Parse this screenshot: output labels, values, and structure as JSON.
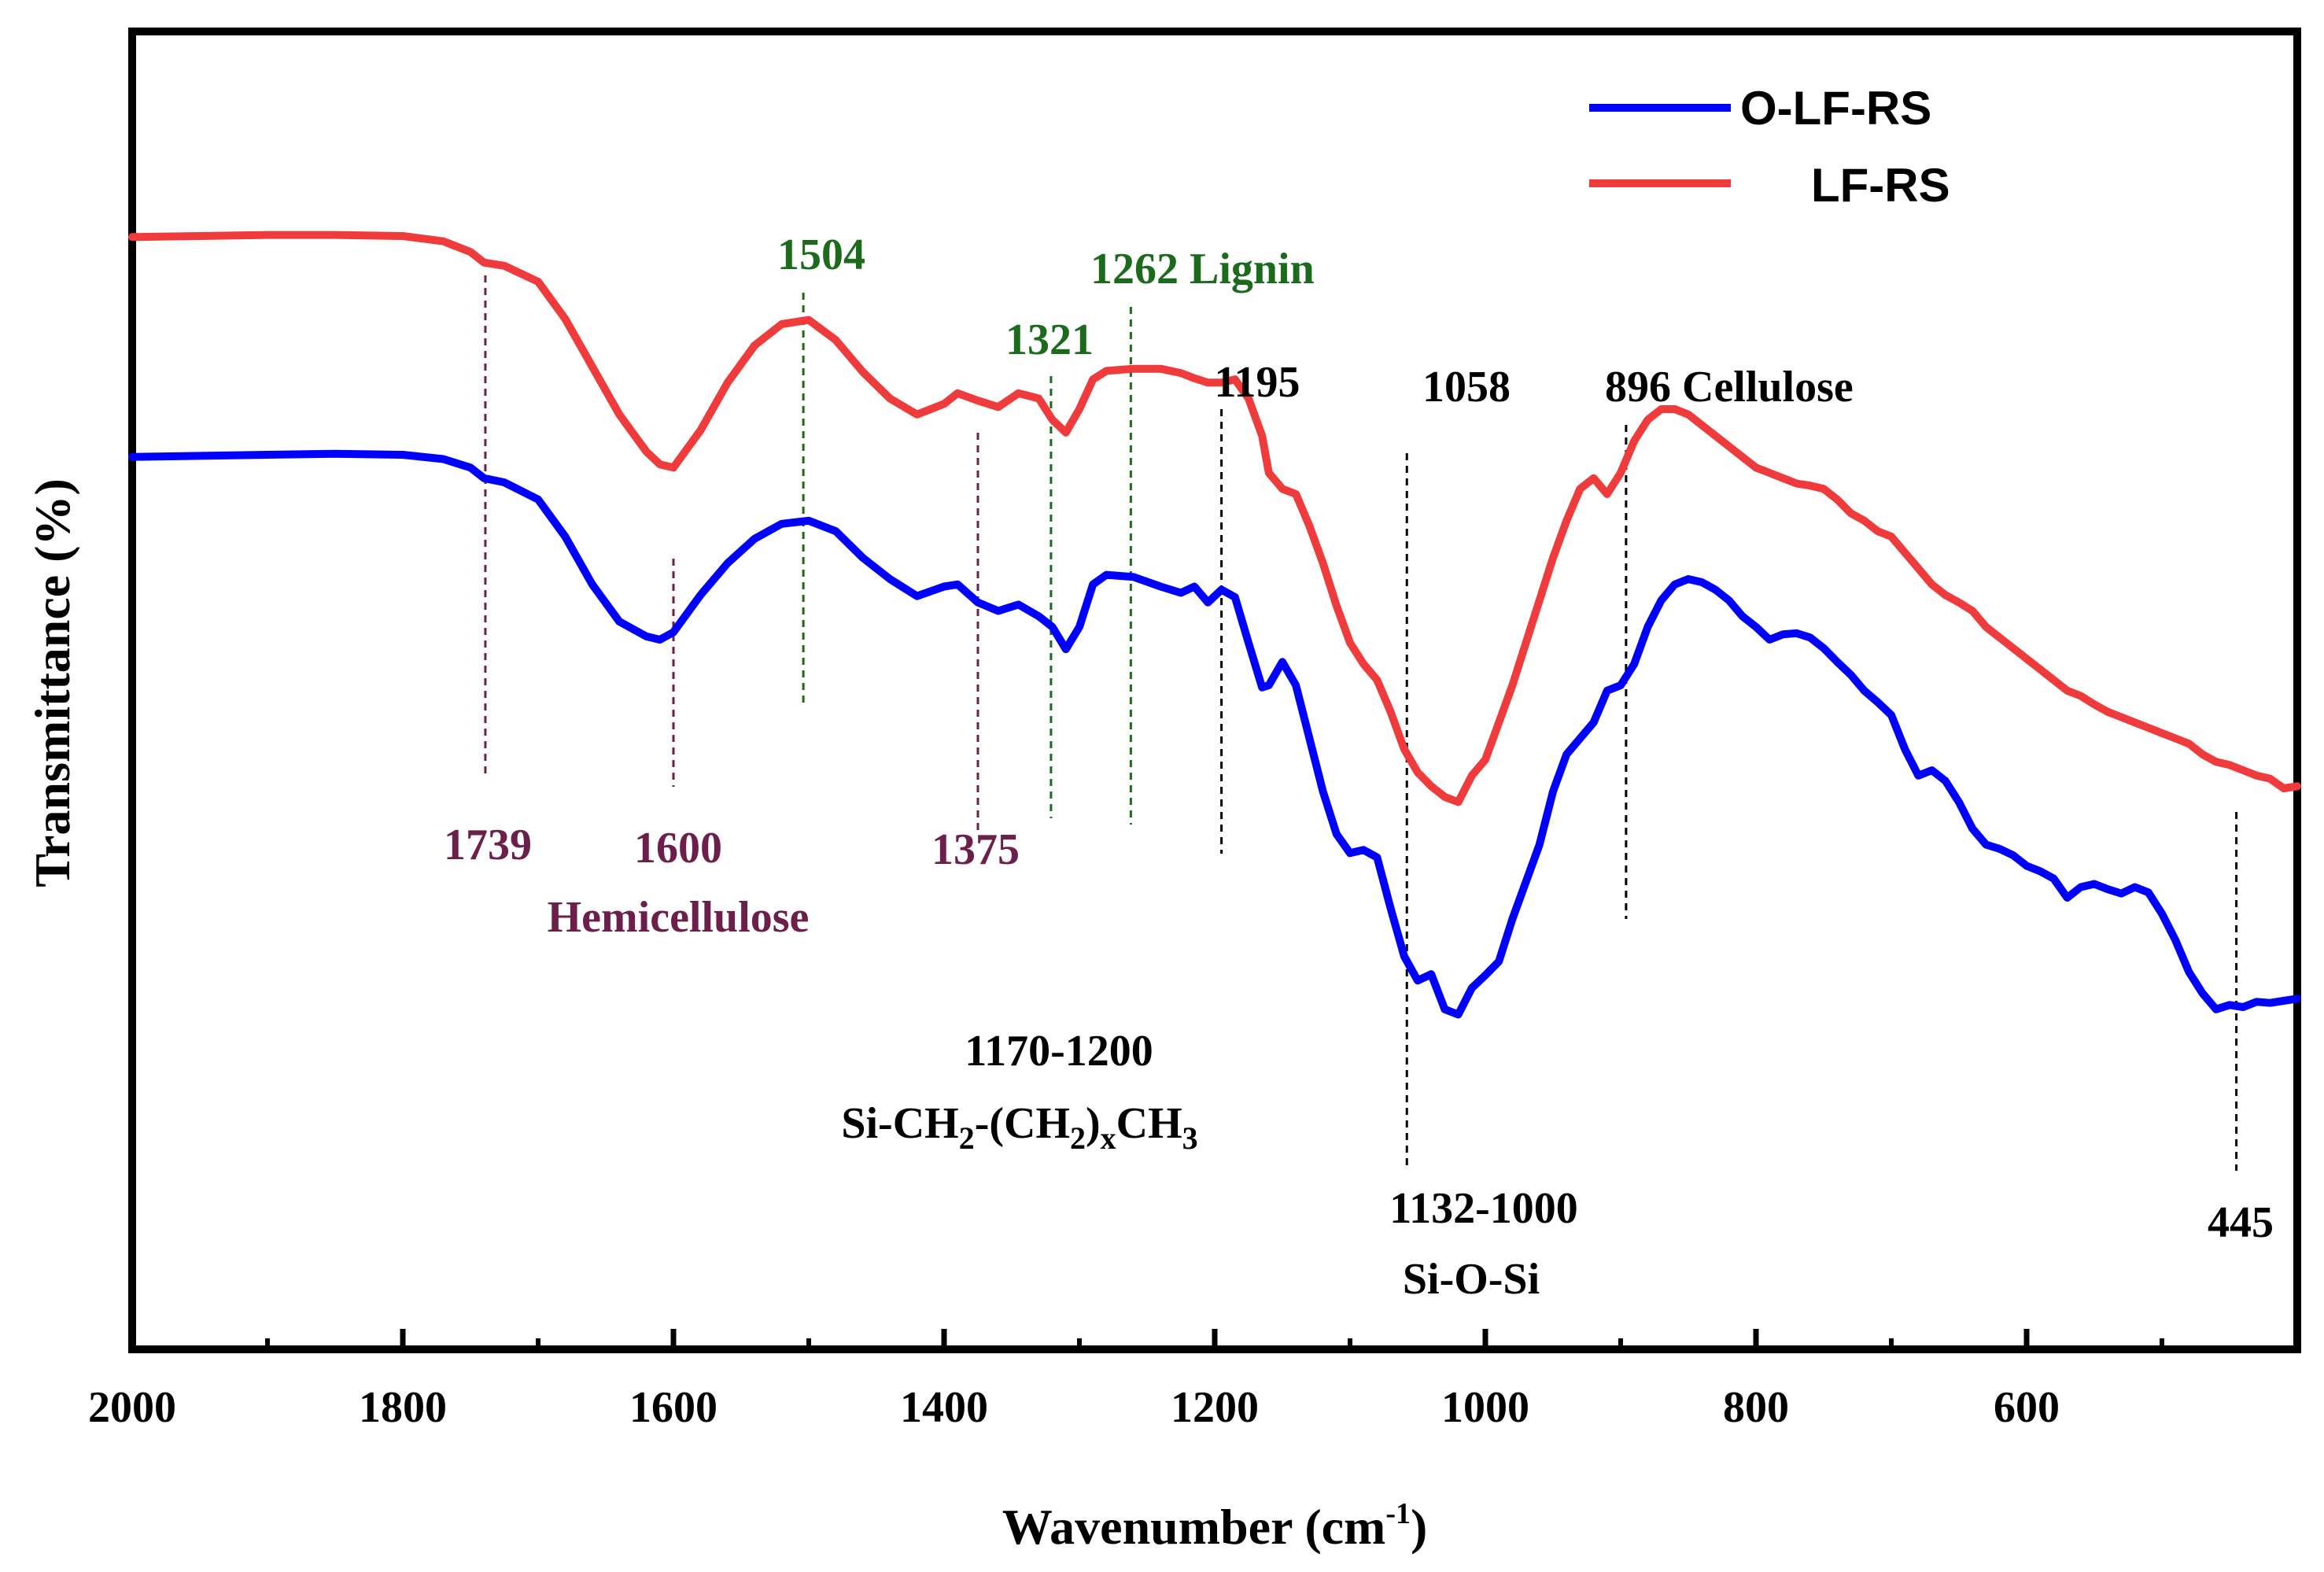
{
  "colors": {
    "o_lf_rs": "#0000ff",
    "lf_rs": "#ef3b3b",
    "hemicellulose": "#6b1f4a",
    "lignin": "#1c6b1c",
    "cellulose": "#000000"
  },
  "chart_data": {
    "type": "line",
    "title": "",
    "xlabel_main": "Wavenumber (cm",
    "xlabel_sup": "-1",
    "xlabel_close": ")",
    "ylabel": "Transmittance (%)",
    "xlim": [
      2000,
      400
    ],
    "x_reversed": true,
    "ylim": [
      0,
      100
    ],
    "y_ticks_shown": false,
    "x_ticks": [
      2000,
      1800,
      1600,
      1400,
      1200,
      1000,
      800,
      600
    ],
    "x_tick_labels": [
      "2000",
      "1800",
      "1600",
      "1400",
      "1200",
      "1000",
      "800",
      "600"
    ],
    "legend_position": "top-right",
    "series": [
      {
        "name": "O-LF-RS",
        "color": "#0000ff",
        "x": [
          2000,
          1950,
          1900,
          1850,
          1800,
          1770,
          1750,
          1740,
          1725,
          1700,
          1680,
          1660,
          1640,
          1620,
          1610,
          1600,
          1580,
          1560,
          1540,
          1520,
          1500,
          1480,
          1460,
          1440,
          1420,
          1400,
          1390,
          1375,
          1360,
          1345,
          1330,
          1320,
          1310,
          1300,
          1290,
          1280,
          1260,
          1240,
          1225,
          1215,
          1205,
          1195,
          1185,
          1175,
          1165,
          1160,
          1150,
          1140,
          1130,
          1120,
          1110,
          1100,
          1090,
          1080,
          1070,
          1060,
          1050,
          1040,
          1030,
          1020,
          1010,
          1000,
          990,
          980,
          970,
          960,
          950,
          940,
          930,
          920,
          910,
          900,
          890,
          880,
          870,
          860,
          850,
          840,
          830,
          820,
          810,
          800,
          790,
          780,
          770,
          760,
          750,
          740,
          730,
          720,
          710,
          700,
          690,
          680,
          670,
          660,
          650,
          640,
          630,
          620,
          610,
          600,
          590,
          580,
          570,
          560,
          550,
          540,
          530,
          520,
          510,
          500,
          490,
          480,
          470,
          460,
          450,
          440,
          430,
          420,
          410,
          400
        ],
        "y": [
          75.5,
          75.6,
          75.7,
          75.8,
          75.7,
          75.3,
          74.5,
          73.5,
          73.1,
          71.5,
          68.0,
          63.5,
          60.0,
          58.6,
          58.3,
          59.0,
          62.5,
          65.5,
          67.8,
          69.2,
          69.5,
          68.5,
          66.0,
          64.0,
          62.4,
          63.3,
          63.5,
          61.8,
          61.0,
          61.6,
          60.5,
          59.5,
          57.4,
          59.5,
          63.5,
          64.4,
          64.2,
          63.3,
          62.7,
          63.3,
          61.8,
          63.0,
          62.3,
          58.0,
          53.8,
          54.0,
          56.2,
          54.0,
          49.0,
          44.0,
          40.0,
          38.2,
          38.5,
          37.8,
          33.0,
          28.5,
          26.2,
          26.8,
          23.5,
          23.0,
          25.5,
          26.7,
          28.0,
          32.0,
          35.5,
          39.0,
          44.0,
          47.5,
          49.0,
          50.5,
          53.5,
          54.0,
          56.0,
          59.5,
          62.0,
          63.5,
          64.0,
          63.7,
          63.0,
          62.0,
          60.5,
          59.5,
          58.3,
          58.8,
          58.9,
          58.5,
          57.5,
          56.2,
          55.0,
          53.5,
          52.4,
          51.2,
          48.0,
          45.5,
          46.0,
          45.0,
          43.0,
          40.5,
          39.0,
          38.6,
          38.0,
          37.0,
          36.5,
          35.8,
          34.0,
          35.0,
          35.3,
          34.8,
          34.4,
          35.0,
          34.5,
          32.5,
          30.0,
          27.0,
          25.0,
          23.5,
          23.9,
          23.7,
          24.2,
          24.1,
          24.3,
          24.5
        ]
      },
      {
        "name": "LF-RS",
        "color": "#ef3b3b",
        "x": [
          2000,
          1950,
          1900,
          1850,
          1800,
          1770,
          1750,
          1740,
          1725,
          1700,
          1680,
          1660,
          1640,
          1620,
          1610,
          1600,
          1580,
          1560,
          1540,
          1520,
          1500,
          1480,
          1460,
          1440,
          1420,
          1400,
          1390,
          1375,
          1360,
          1345,
          1330,
          1320,
          1310,
          1300,
          1290,
          1280,
          1260,
          1240,
          1225,
          1215,
          1205,
          1195,
          1185,
          1175,
          1165,
          1160,
          1150,
          1140,
          1130,
          1120,
          1110,
          1100,
          1090,
          1080,
          1070,
          1060,
          1050,
          1040,
          1030,
          1020,
          1010,
          1000,
          990,
          980,
          970,
          960,
          950,
          940,
          930,
          920,
          910,
          900,
          890,
          880,
          870,
          860,
          850,
          840,
          830,
          820,
          810,
          800,
          790,
          780,
          770,
          760,
          750,
          740,
          730,
          720,
          710,
          700,
          690,
          680,
          670,
          660,
          650,
          640,
          630,
          620,
          610,
          600,
          590,
          580,
          570,
          560,
          550,
          540,
          530,
          520,
          510,
          500,
          490,
          480,
          470,
          460,
          450,
          440,
          430,
          420,
          410,
          400
        ],
        "y": [
          96.2,
          96.3,
          96.4,
          96.4,
          96.3,
          95.8,
          94.8,
          93.8,
          93.5,
          92.0,
          88.5,
          84.0,
          79.5,
          76.0,
          74.8,
          74.5,
          78.0,
          82.5,
          86.0,
          88.0,
          88.4,
          86.5,
          83.5,
          81.0,
          79.5,
          80.5,
          81.5,
          80.8,
          80.2,
          81.5,
          81.0,
          79.0,
          77.8,
          80.0,
          82.8,
          83.6,
          83.8,
          83.8,
          83.4,
          82.9,
          82.5,
          82.5,
          82.8,
          81.0,
          77.5,
          74.0,
          72.5,
          72.0,
          69.0,
          65.5,
          61.5,
          58.0,
          56.0,
          54.5,
          51.5,
          48.0,
          45.8,
          44.5,
          43.5,
          43.0,
          45.5,
          47.0,
          50.5,
          54.0,
          58.0,
          62.0,
          66.0,
          69.5,
          72.5,
          73.5,
          72.0,
          74.0,
          77.0,
          79.0,
          80.0,
          80.0,
          79.5,
          78.5,
          77.5,
          76.5,
          75.5,
          74.5,
          74.0,
          73.5,
          73.0,
          72.8,
          72.5,
          71.5,
          70.2,
          69.5,
          68.5,
          68.0,
          66.5,
          65.0,
          63.5,
          62.5,
          61.8,
          61.0,
          59.5,
          58.5,
          57.5,
          56.5,
          55.5,
          54.5,
          53.5,
          53.0,
          52.2,
          51.5,
          51.0,
          50.5,
          50.0,
          49.5,
          49.0,
          48.5,
          47.5,
          46.8,
          46.5,
          46.0,
          45.5,
          45.2,
          44.3,
          44.5
        ]
      }
    ],
    "reference_lines": [
      {
        "x": 1739,
        "group": "hemicellulose"
      },
      {
        "x": 1600,
        "group": "hemicellulose"
      },
      {
        "x": 1375,
        "group": "hemicellulose"
      },
      {
        "x": 1504,
        "group": "lignin"
      },
      {
        "x": 1321,
        "group": "lignin"
      },
      {
        "x": 1262,
        "group": "lignin"
      },
      {
        "x": 1195,
        "group": "cellulose"
      },
      {
        "x": 1058,
        "group": "cellulose"
      },
      {
        "x": 896,
        "group": "cellulose"
      },
      {
        "x": 445,
        "group": "cellulose"
      }
    ],
    "annotations": {
      "a1739": "1739",
      "a1600": "1600",
      "a1375": "1375",
      "hemicellulose": "Hemicellulose",
      "a1504": "1504",
      "a1321": "1321",
      "a1262": "1262 Lignin",
      "a1195": "1195",
      "a1058": "1058",
      "a896": "896 Cellulose",
      "range_1170_1200": "1170-1200",
      "si_ch2_a": "Si-CH",
      "si_ch2_sub1": "2",
      "si_ch2_b": "-(CH",
      "si_ch2_sub2": "2",
      "si_ch2_c": ")",
      "si_ch2_subx": "x",
      "si_ch2_d": "CH",
      "si_ch2_sub3": "3",
      "range_1132_1000": "1132-1000",
      "si_o_si": "Si-O-Si",
      "a445": "445"
    }
  }
}
